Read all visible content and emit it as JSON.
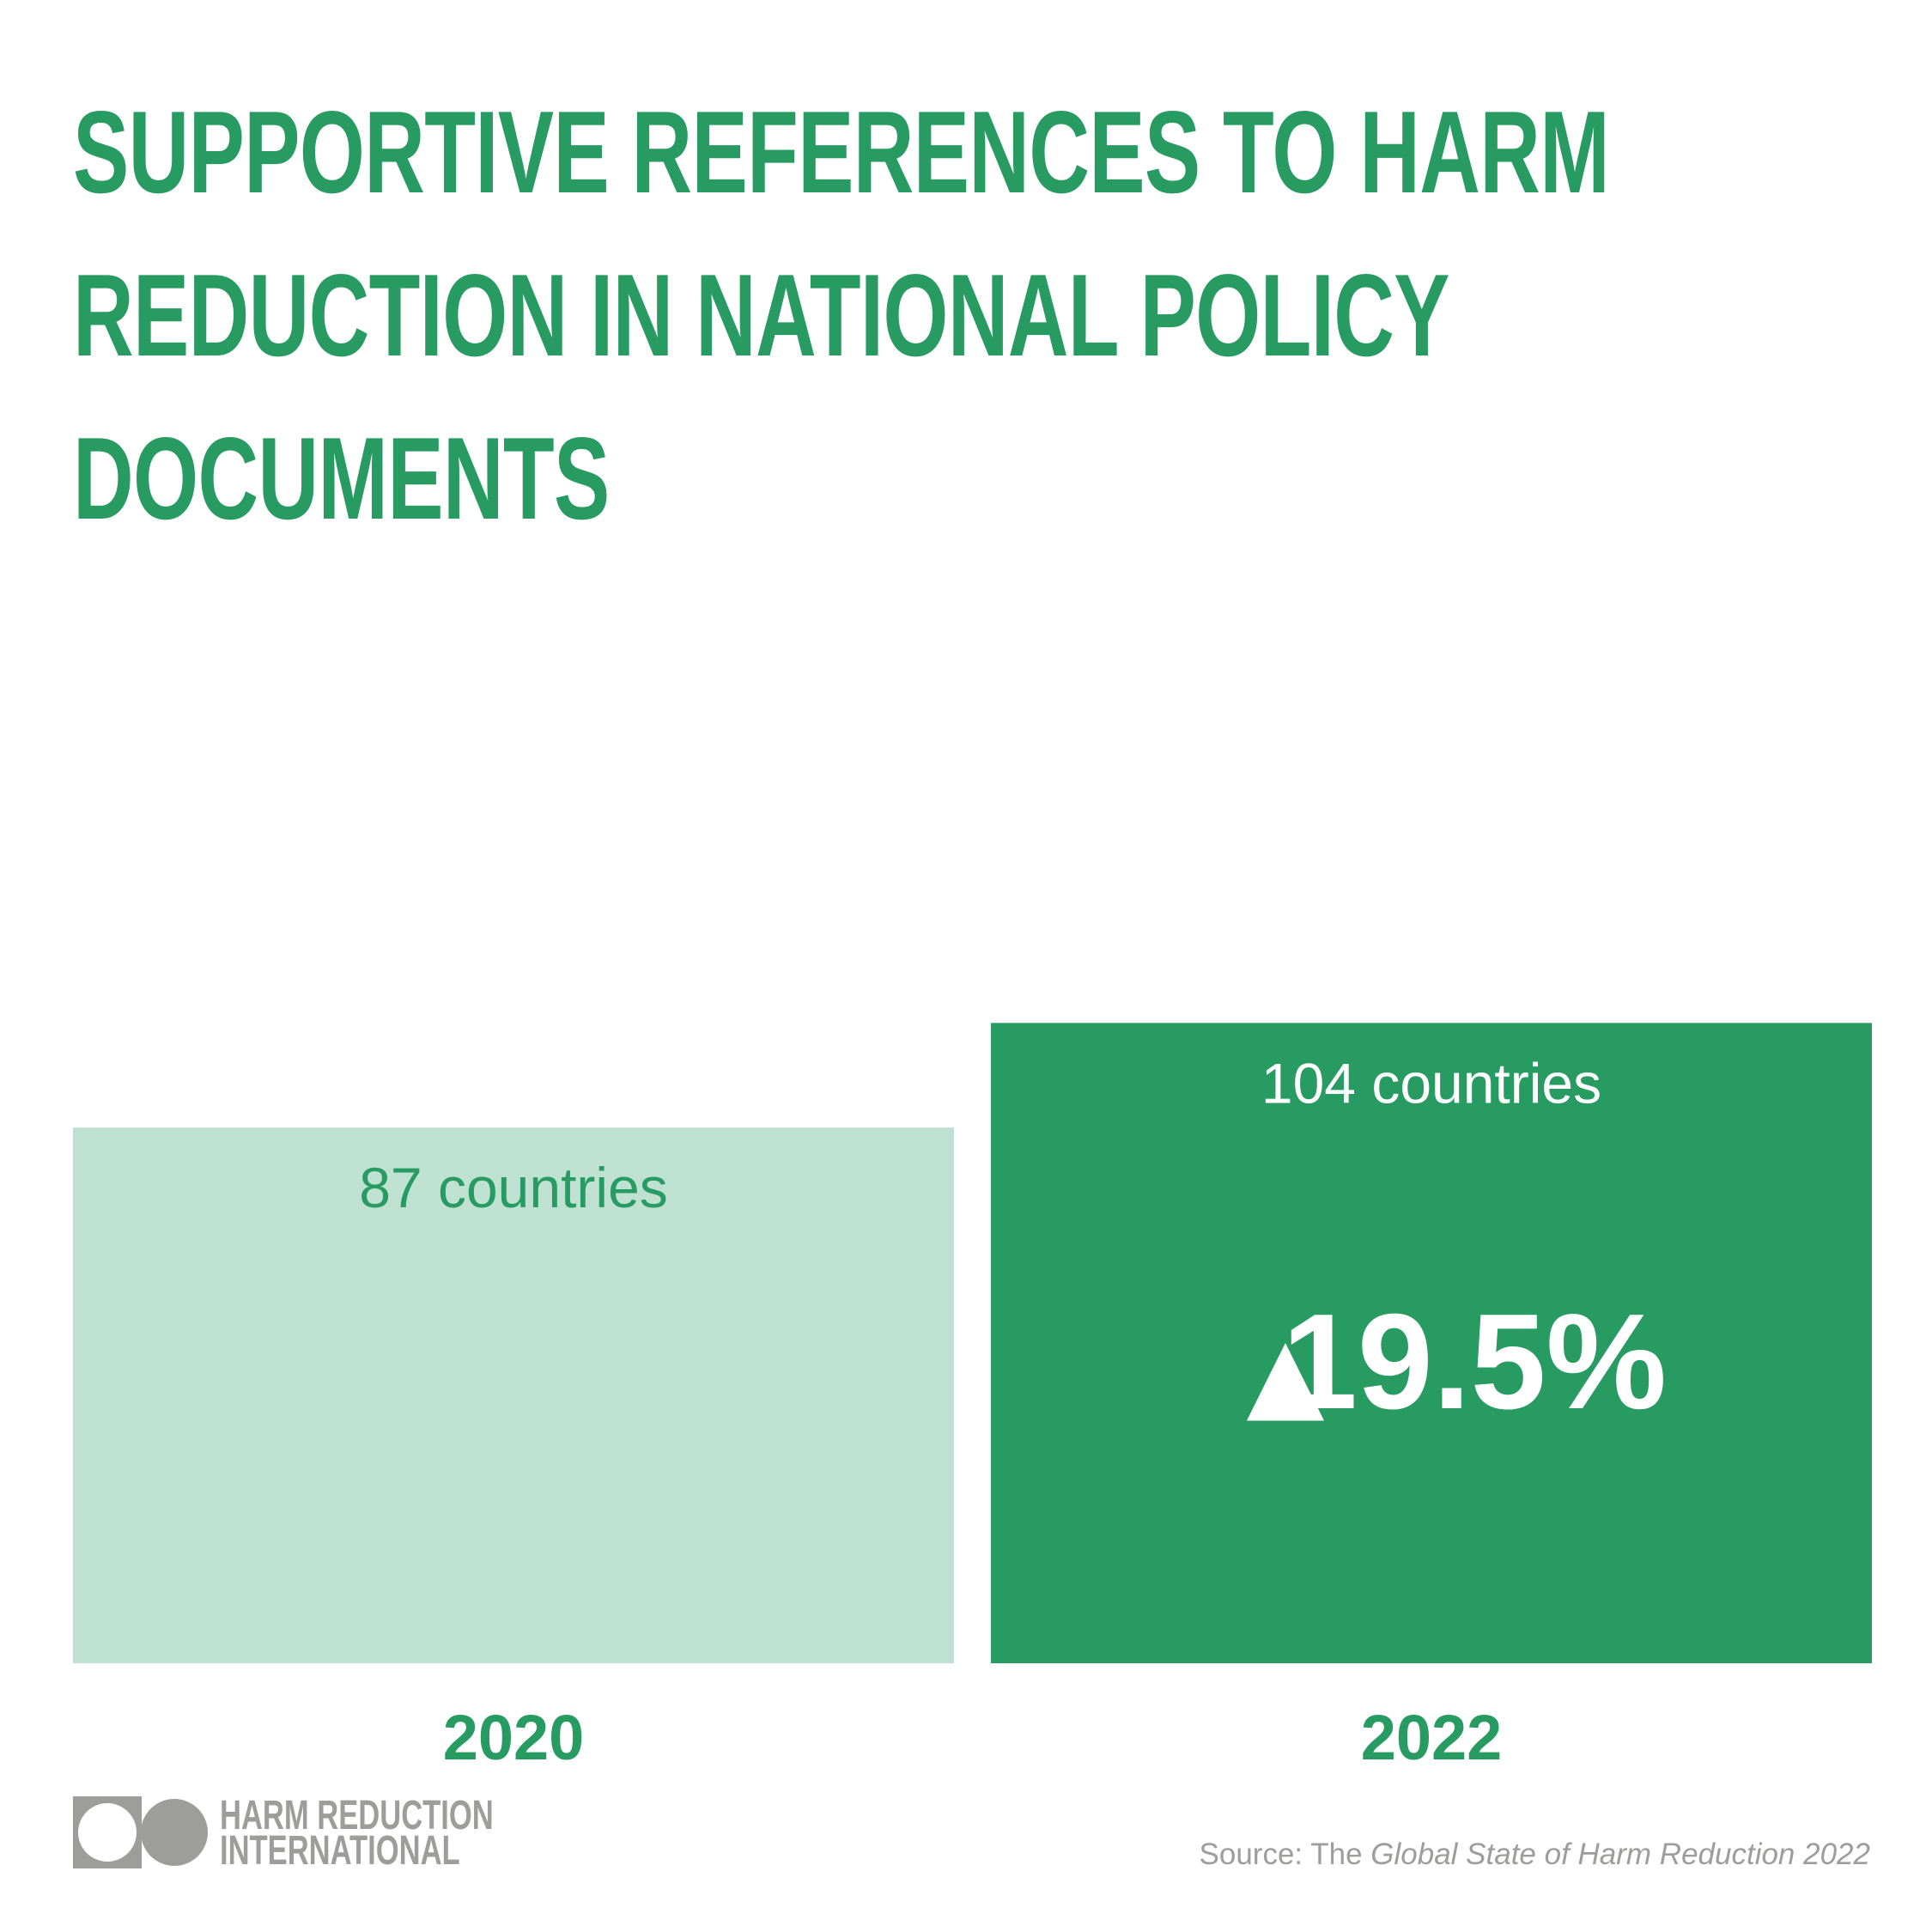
{
  "title_lines": [
    "SUPPORTIVE REFERENCES TO HARM",
    "REDUCTION IN NATIONAL POLICY",
    "DOCUMENTS"
  ],
  "chart_data": {
    "type": "bar",
    "title": "Supportive references to harm reduction in national policy documents",
    "categories": [
      "2020",
      "2022"
    ],
    "values": [
      87,
      104
    ],
    "value_labels": [
      "87 countries",
      "104 countries"
    ],
    "unit": "countries",
    "annotation": "19.5%",
    "annotation_marker": "▲",
    "xlabel": "",
    "ylabel": "",
    "grid": false,
    "legend": "none",
    "colors": {
      "bar_2020": "#bee1d1",
      "bar_2022": "#279b61",
      "label_2020": "#279b61",
      "label_2022": "#ffffff",
      "category_label": "#279b61"
    }
  },
  "footer": {
    "logo_lines": [
      "HARM REDUCTION",
      "INTERNATIONAL"
    ],
    "logo_icon": "square-circle-icon",
    "source_prefix": "Source: The ",
    "source_italic": "Global State of Harm Reduction 2022",
    "text_color": "#9d9d9c"
  }
}
